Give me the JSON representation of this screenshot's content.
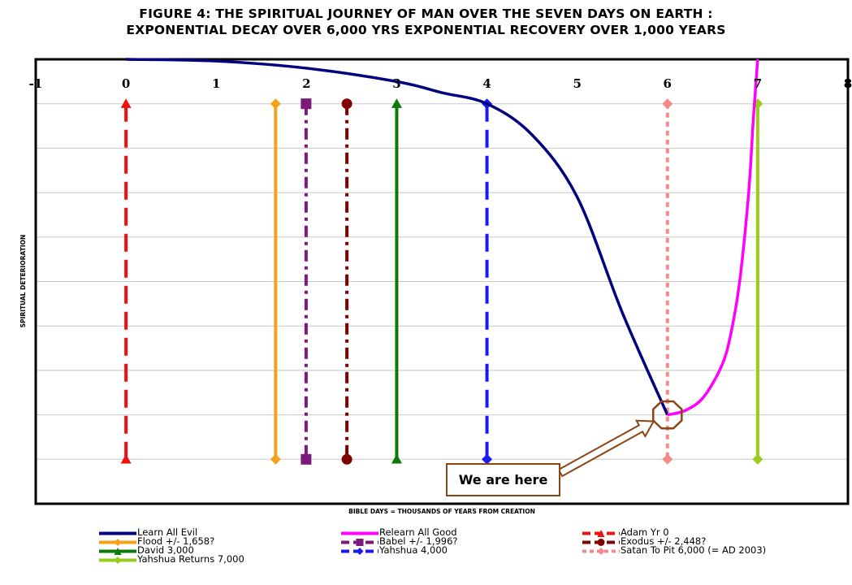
{
  "title_line1": "FIGURE 4: THE SPIRITUAL JOURNEY OF MAN OVER THE SEVEN DAYS ON EARTH :",
  "title_line2": "EXPONENTIAL DECAY OVER 6,000 YRS EXPONENTIAL RECOVERY OVER 1,000 YEARS",
  "callout": "We are here",
  "chart_data": {
    "type": "line",
    "xlabel": "BIBLE DAYS = THOUSANDS OF YEARS FROM CREATION",
    "ylabel": "SPIRITUAL DETERIORATION",
    "xlim": [
      -1,
      8
    ],
    "x_ticks": [
      "-1",
      "0",
      "1",
      "2",
      "3",
      "4",
      "5",
      "6",
      "7",
      "8"
    ],
    "ylim": [
      0,
      10
    ],
    "grid": true,
    "legend_position": "bottom",
    "curves": [
      {
        "name": "Learn All Evil",
        "color": "#000080",
        "x": [
          0,
          1,
          2,
          3,
          3.5,
          4,
          4.5,
          5,
          5.5,
          6
        ],
        "y": [
          10,
          9.96,
          9.8,
          9.5,
          9.25,
          9.0,
          8.3,
          6.9,
          4.3,
          2.0
        ]
      },
      {
        "name": "Relearn All Good",
        "color": "#ff00ff",
        "x": [
          6,
          6.2,
          6.4,
          6.6,
          6.7,
          6.8,
          6.9,
          6.95,
          7.0
        ],
        "y": [
          2.0,
          2.1,
          2.4,
          3.1,
          3.8,
          5.0,
          7.0,
          8.6,
          10
        ]
      }
    ],
    "events": [
      {
        "name": "Adam Yr 0",
        "x": 0,
        "color": "#ee1111",
        "marker": "triangle",
        "dash": "dashed",
        "legend_col": 2
      },
      {
        "name": "Flood +/- 1,658?",
        "x": 1.658,
        "color": "#f5a01a",
        "marker": "diamond",
        "dash": "solid",
        "legend_col": 0
      },
      {
        "name": "Babel +/- 1,996?",
        "x": 1.996,
        "color": "#7b1a7b",
        "marker": "square",
        "dash": "dashdot",
        "legend_col": 1
      },
      {
        "name": "Exodus +/- 2,448?",
        "x": 2.448,
        "color": "#800000",
        "marker": "circle",
        "dash": "dashdot",
        "legend_col": 2
      },
      {
        "name": "David 3,000",
        "x": 3.0,
        "color": "#0a7a0a",
        "marker": "triangle",
        "dash": "solid",
        "legend_col": 0
      },
      {
        "name": "Yahshua  4,000",
        "x": 4.0,
        "color": "#1a1aee",
        "marker": "diamond",
        "dash": "dashed",
        "legend_col": 1
      },
      {
        "name": "Satan To Pit 6,000 (= AD 2003)",
        "x": 6.0,
        "color": "#f58a8a",
        "marker": "diamond",
        "dash": "dotted",
        "legend_col": 2
      },
      {
        "name": "Yahshua Returns 7,000",
        "x": 7.0,
        "color": "#9acd1a",
        "marker": "diamond",
        "dash": "solid",
        "legend_col": 0
      }
    ],
    "event_y_range": [
      1,
      9
    ]
  }
}
